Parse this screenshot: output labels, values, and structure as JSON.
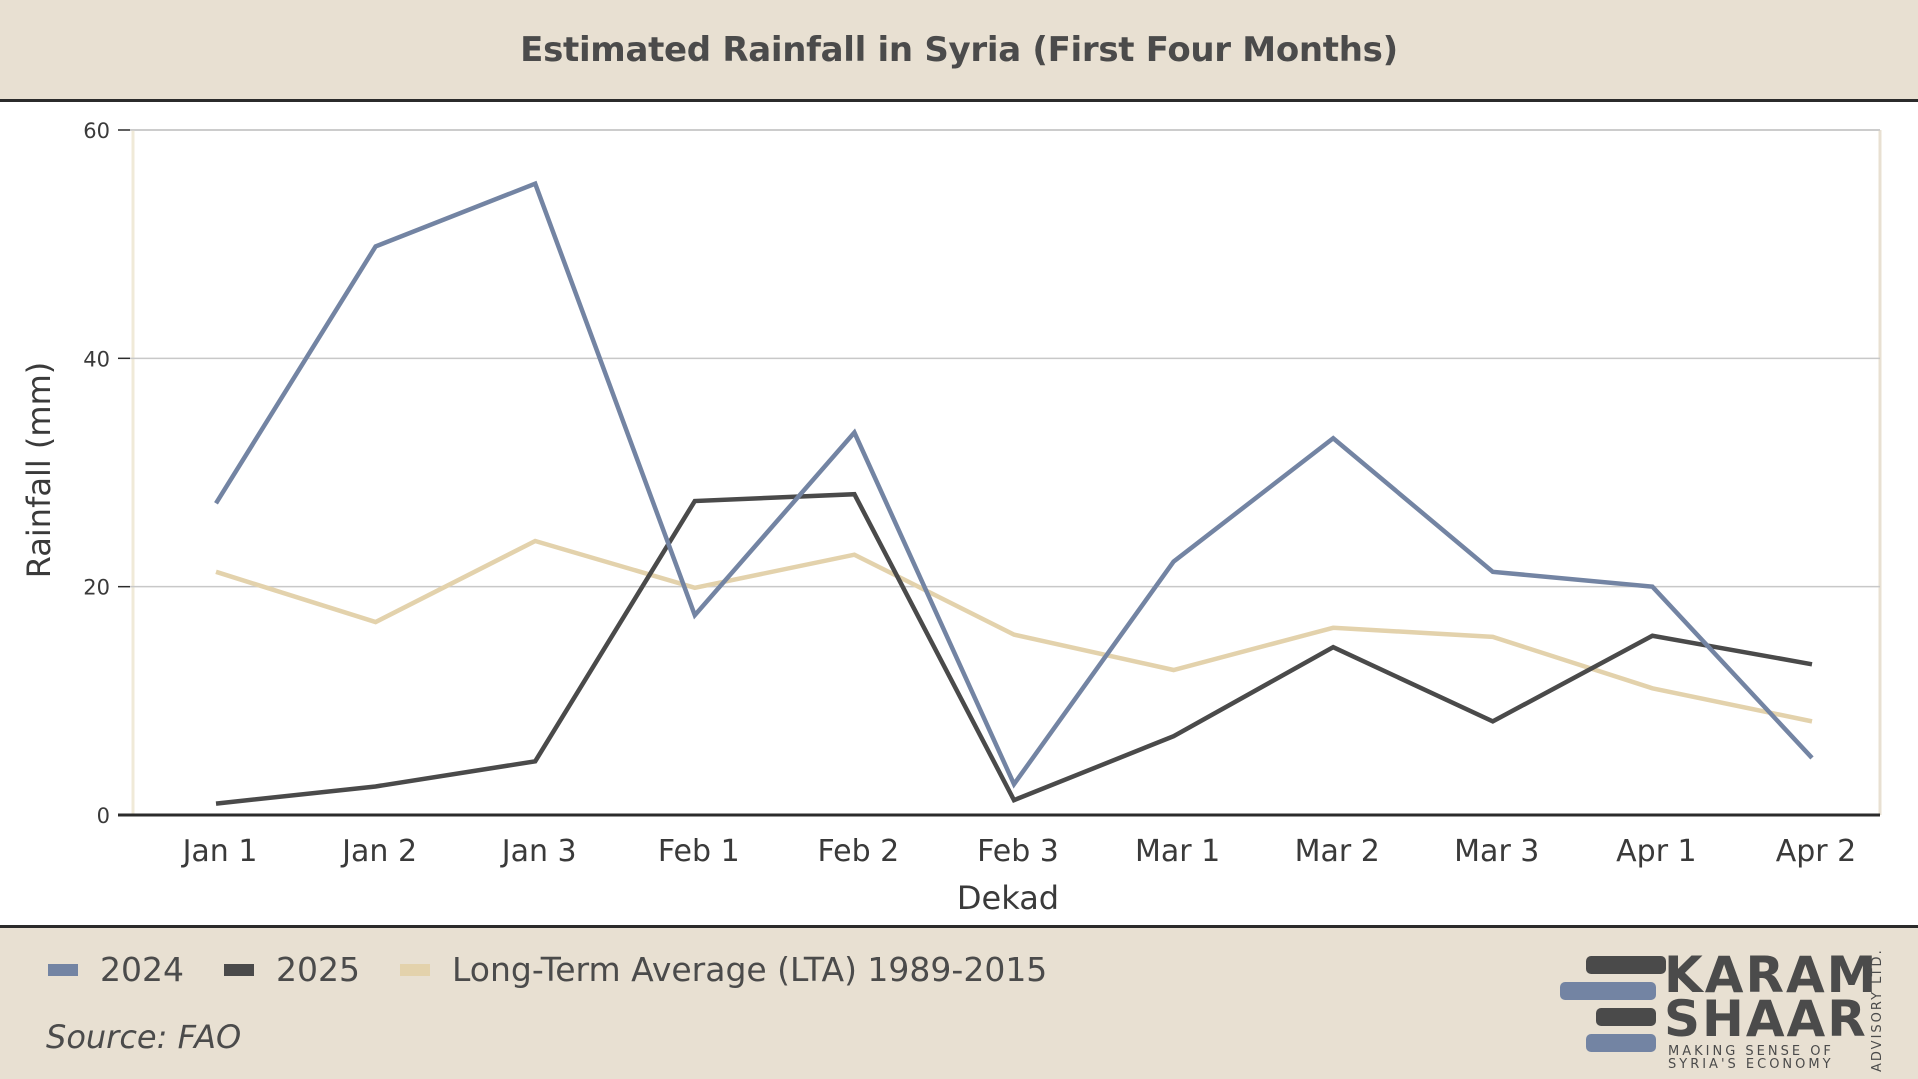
{
  "title": "Estimated Rainfall in Syria (First Four Months)",
  "source": "Source: FAO",
  "logo": {
    "line1": "KARAM",
    "line2": "SHAAR",
    "tag1": "MAKING SENSE OF",
    "tag2": "SYRIA'S ECONOMY",
    "side": "ADVISORY LTD."
  },
  "colors": {
    "s2024": "#7384a3",
    "s2025": "#4a4a4a",
    "lta": "#e3d2ac",
    "grid": "#c8c8c8",
    "axis": "#2b2b2b"
  },
  "chart_data": {
    "type": "line",
    "title": "Estimated Rainfall in Syria (First Four Months)",
    "xlabel": "Dekad",
    "ylabel": "Rainfall (mm)",
    "ylim": [
      0,
      60
    ],
    "yticks": [
      0,
      20,
      40,
      60
    ],
    "grid": true,
    "legend": "bottom",
    "categories": [
      "Jan 1",
      "Jan 2",
      "Jan 3",
      "Feb 1",
      "Feb 2",
      "Feb 3",
      "Mar 1",
      "Mar 2",
      "Mar 3",
      "Apr 1",
      "Apr 2"
    ],
    "series": [
      {
        "name": "2024",
        "color": "#7384a3",
        "values": [
          27.3,
          49.8,
          55.3,
          17.5,
          33.5,
          2.7,
          22.2,
          33.0,
          21.3,
          20.0,
          5.0
        ]
      },
      {
        "name": "2025",
        "color": "#4a4a4a",
        "values": [
          1.0,
          2.5,
          4.7,
          27.5,
          28.1,
          1.3,
          6.9,
          14.7,
          8.2,
          15.7,
          13.2
        ]
      },
      {
        "name": "Long-Term Average (LTA) 1989-2015",
        "color": "#e3d2ac",
        "values": [
          21.3,
          16.9,
          24.0,
          19.9,
          22.8,
          15.8,
          12.7,
          16.4,
          15.6,
          11.1,
          8.2
        ]
      }
    ]
  }
}
